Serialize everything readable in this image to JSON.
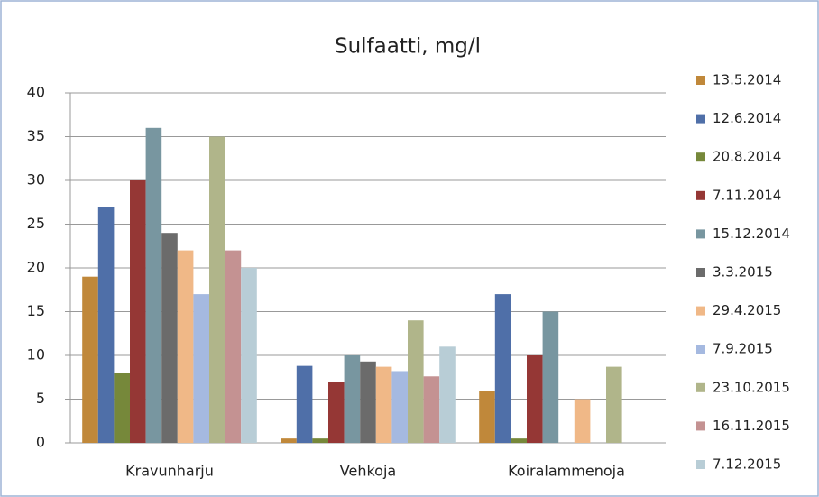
{
  "chart_data": {
    "type": "bar",
    "title": "Sulfaatti, mg/l",
    "categories": [
      "Kravunharju",
      "Vehkoja",
      "Koiralammenoja"
    ],
    "series": [
      {
        "name": "13.5.2014",
        "color": "#c0883a",
        "values": [
          19,
          0.5,
          5.9
        ]
      },
      {
        "name": "12.6.2014",
        "color": "#4f6fa8",
        "values": [
          27,
          8.8,
          17
        ]
      },
      {
        "name": "20.8.2014",
        "color": "#76883a",
        "values": [
          8,
          0.5,
          0.5
        ]
      },
      {
        "name": "7.11.2014",
        "color": "#953735",
        "values": [
          30,
          7,
          10
        ]
      },
      {
        "name": "15.12.2014",
        "color": "#7896a0",
        "values": [
          36,
          10,
          15
        ]
      },
      {
        "name": "3.3.2015",
        "color": "#6b6b6b",
        "values": [
          24,
          9.3,
          null
        ]
      },
      {
        "name": "29.4.2015",
        "color": "#f0b887",
        "values": [
          22,
          8.7,
          5
        ]
      },
      {
        "name": "7.9.2015",
        "color": "#a5b9e0",
        "values": [
          17,
          8.2,
          null
        ]
      },
      {
        "name": "23.10.2015",
        "color": "#b0b58a",
        "values": [
          35,
          14,
          8.7
        ]
      },
      {
        "name": "16.11.2015",
        "color": "#c49292",
        "values": [
          22,
          7.6,
          null
        ]
      },
      {
        "name": "7.12.2015",
        "color": "#b8cdd6",
        "values": [
          20,
          11,
          null
        ]
      }
    ],
    "ylim": [
      0,
      40
    ],
    "yticks": [
      0,
      5,
      10,
      15,
      20,
      25,
      30,
      35,
      40
    ],
    "grid": true,
    "legend": "right"
  }
}
